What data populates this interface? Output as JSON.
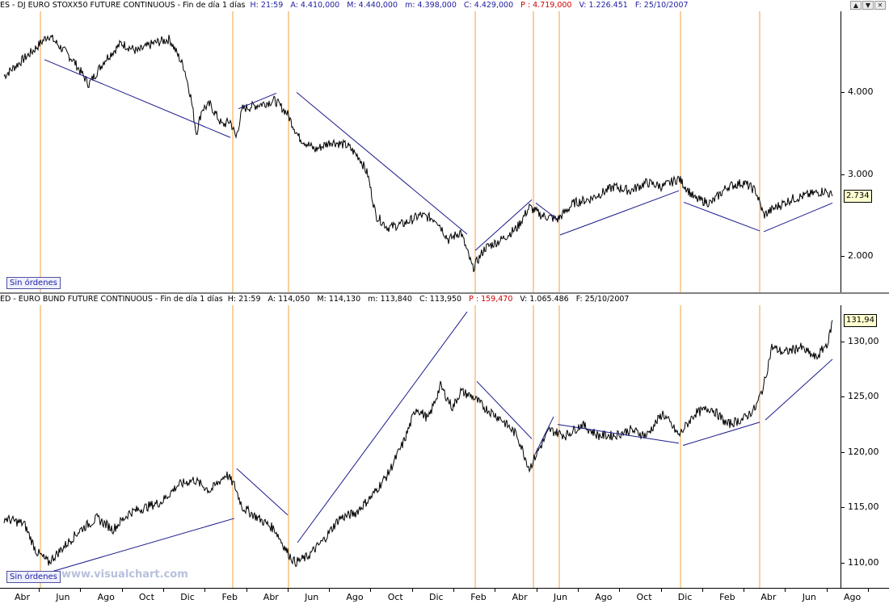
{
  "panel1": {
    "title": {
      "symbol": "ES - DJ EURO STOXX50 FUTURE CONTINUOUS - Fin de día 1 días",
      "h": "H: 21:59",
      "a": "A: 4.410,000",
      "m": "M: 4.440,000",
      "lo": "m: 4.398,000",
      "c": "C: 4.429,000",
      "p": "P : 4.719,000",
      "v": "V: 1.226.451",
      "f": "F: 25/10/2007"
    },
    "last_label": "2.734",
    "orders_label": "Sin órdenes"
  },
  "panel2": {
    "title": {
      "symbol": "ED - EURO BUND FUTURE CONTINUOUS - Fin de día 1 días",
      "h": "H: 21:59",
      "a": "A: 114,050",
      "m": "M: 114,130",
      "lo": "m: 113,840",
      "c": "C: 113,950",
      "p": "P : 159,470",
      "v": "V: 1.065.486",
      "f": "F: 25/10/2007"
    },
    "last_label": "131,94",
    "orders_label": "Sin órdenes"
  },
  "watermark": "www.visualchart.com",
  "window_buttons": [
    "▲",
    "▼",
    "✕"
  ],
  "colors": {
    "price": "#000000",
    "trendline": "#1a1a8c",
    "vertical_marker": "#f0a040",
    "label_blue": "#2020a0",
    "label_red": "#d00000"
  },
  "chart_data": [
    {
      "type": "line",
      "title": "ES - DJ EURO STOXX50 FUTURE CONTINUOUS - Fin de día 1 días",
      "x_labels": [
        "Abr",
        "Jun",
        "Ago",
        "Oct",
        "Dic",
        "Feb",
        "Abr",
        "Jun",
        "Ago",
        "Oct",
        "Dic",
        "Feb",
        "Abr",
        "Jun",
        "Ago",
        "Oct",
        "Dic",
        "Feb",
        "Abr",
        "Jun",
        "Ago"
      ],
      "ylim": [
        1600,
        4950
      ],
      "y_ticks": [
        2000,
        3000,
        4000
      ],
      "y_tick_labels": [
        "2.000",
        "3.000",
        "4.000"
      ],
      "x_range": [
        0,
        1040
      ],
      "series": [
        {
          "x": [
            5,
            40,
            60,
            90,
            110,
            130,
            150,
            170,
            190,
            210,
            228,
            236,
            243,
            250,
            260,
            275,
            285,
            292,
            300,
            320,
            340,
            355,
            370,
            390,
            410,
            430,
            445,
            455,
            465,
            480,
            500,
            520,
            540,
            555,
            570,
            585,
            600,
            620,
            640,
            655,
            670,
            690,
            710,
            730,
            760,
            780,
            800,
            820,
            840,
            860,
            880,
            900,
            920,
            935,
            945,
            960,
            980,
            1000,
            1020,
            1030
          ],
          "values": [
            4200,
            4500,
            4700,
            4400,
            4100,
            4400,
            4600,
            4500,
            4600,
            4650,
            4300,
            3950,
            3500,
            3800,
            3850,
            3600,
            3650,
            3450,
            3800,
            3850,
            3900,
            3750,
            3450,
            3300,
            3400,
            3350,
            3200,
            3000,
            2500,
            2350,
            2400,
            2500,
            2450,
            2200,
            2300,
            1850,
            2100,
            2200,
            2350,
            2600,
            2500,
            2450,
            2650,
            2700,
            2850,
            2800,
            2900,
            2850,
            2950,
            2700,
            2650,
            2850,
            2900,
            2800,
            2500,
            2600,
            2700,
            2750,
            2800,
            2734
          ]
        }
      ],
      "trendlines": [
        {
          "x": [
            55,
            285
          ],
          "values": [
            4400,
            3450
          ]
        },
        {
          "x": [
            295,
            342
          ],
          "values": [
            3800,
            3990
          ]
        },
        {
          "x": [
            367,
            578
          ],
          "values": [
            4000,
            2270
          ]
        },
        {
          "x": [
            588,
            658
          ],
          "values": [
            2070,
            2690
          ]
        },
        {
          "x": [
            663,
            690
          ],
          "values": [
            2650,
            2450
          ]
        },
        {
          "x": [
            693,
            840
          ],
          "values": [
            2260,
            2800
          ]
        },
        {
          "x": [
            846,
            940
          ],
          "values": [
            2660,
            2310
          ]
        },
        {
          "x": [
            945,
            1030
          ],
          "values": [
            2300,
            2650
          ]
        }
      ],
      "vertical_markers_x": [
        50,
        288,
        357,
        588,
        660,
        692,
        842,
        940
      ]
    },
    {
      "type": "line",
      "title": "ED - EURO BUND FUTURE CONTINUOUS - Fin de día 1 días",
      "x_labels": [
        "Abr",
        "Jun",
        "Ago",
        "Oct",
        "Dic",
        "Feb",
        "Abr",
        "Jun",
        "Ago",
        "Oct",
        "Dic",
        "Feb",
        "Abr",
        "Jun",
        "Ago",
        "Oct",
        "Dic",
        "Feb",
        "Abr",
        "Jun",
        "Ago"
      ],
      "ylim": [
        108.0,
        133.0
      ],
      "y_ticks": [
        110,
        115,
        120,
        125,
        130
      ],
      "y_tick_labels": [
        "110,00",
        "115,00",
        "120,00",
        "125,00",
        "130,00"
      ],
      "x_range": [
        0,
        1040
      ],
      "series": [
        {
          "x": [
            5,
            30,
            45,
            60,
            80,
            100,
            120,
            140,
            160,
            180,
            200,
            220,
            240,
            260,
            280,
            290,
            300,
            320,
            340,
            355,
            365,
            380,
            400,
            420,
            440,
            460,
            480,
            500,
            515,
            530,
            545,
            560,
            570,
            585,
            600,
            620,
            640,
            655,
            665,
            680,
            700,
            720,
            740,
            760,
            780,
            800,
            820,
            840,
            860,
            880,
            900,
            920,
            935,
            945,
            955,
            970,
            990,
            1010,
            1025,
            1030
          ],
          "values": [
            114,
            113.5,
            111,
            110,
            111.5,
            113,
            114,
            113,
            114.5,
            115,
            115.5,
            117,
            117.5,
            116.5,
            118,
            117,
            115,
            114,
            113,
            111,
            110,
            110.5,
            112,
            114,
            114.5,
            116,
            118,
            121,
            124,
            123,
            126,
            124,
            125.5,
            125,
            124,
            123,
            121.5,
            118.5,
            120,
            122,
            121.5,
            122.5,
            121.5,
            121.5,
            122,
            121.5,
            123.5,
            121.5,
            123.5,
            124,
            122.5,
            123,
            124,
            126,
            129.5,
            129,
            129.5,
            128.5,
            130,
            131.94
          ]
        }
      ],
      "trendlines": [
        {
          "x": [
            65,
            290
          ],
          "values": [
            109.2,
            114.0
          ]
        },
        {
          "x": [
            293,
            356
          ],
          "values": [
            118.5,
            114.3
          ]
        },
        {
          "x": [
            368,
            578
          ],
          "values": [
            111.8,
            132.7
          ]
        },
        {
          "x": [
            590,
            658
          ],
          "values": [
            126.4,
            121.2
          ]
        },
        {
          "x": [
            662,
            685
          ],
          "values": [
            119.8,
            123.2
          ]
        },
        {
          "x": [
            690,
            840
          ],
          "values": [
            122.5,
            120.8
          ]
        },
        {
          "x": [
            845,
            940
          ],
          "values": [
            120.6,
            122.7
          ]
        },
        {
          "x": [
            947,
            1030
          ],
          "values": [
            122.9,
            128.4
          ]
        }
      ],
      "vertical_markers_x": [
        50,
        288,
        357,
        588,
        660,
        692,
        842,
        940
      ]
    }
  ]
}
